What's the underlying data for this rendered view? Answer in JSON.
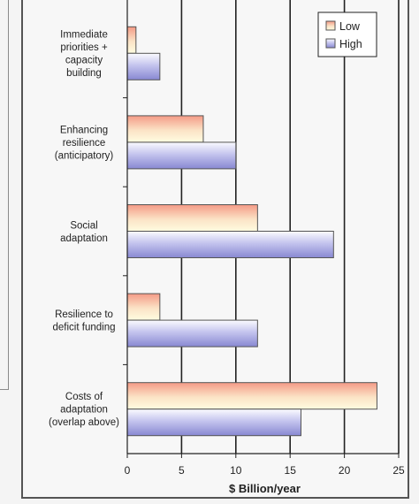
{
  "chart_data": {
    "type": "bar",
    "orientation": "horizontal",
    "categories": [
      [
        "Immediate",
        "priorities +",
        "capacity",
        "building"
      ],
      [
        "Enhancing",
        "resilience",
        "(anticipatory)"
      ],
      [
        "Social",
        "adaptation"
      ],
      [
        "Resilience to",
        "deficit funding"
      ],
      [
        "Costs of",
        "adaptation",
        "(overlap above)"
      ]
    ],
    "series": [
      {
        "name": "Low",
        "values": [
          0.8,
          7,
          12,
          3,
          23
        ],
        "color": "#f2a08c"
      },
      {
        "name": "High",
        "values": [
          3,
          10,
          19,
          12,
          16
        ],
        "color": "#9a9ad8"
      }
    ],
    "xlabel": "$ Billion/year",
    "xlim": [
      0,
      25
    ],
    "xticks": [
      0,
      5,
      10,
      15,
      20,
      25
    ],
    "grid": "vertical",
    "legend": "top-right"
  }
}
